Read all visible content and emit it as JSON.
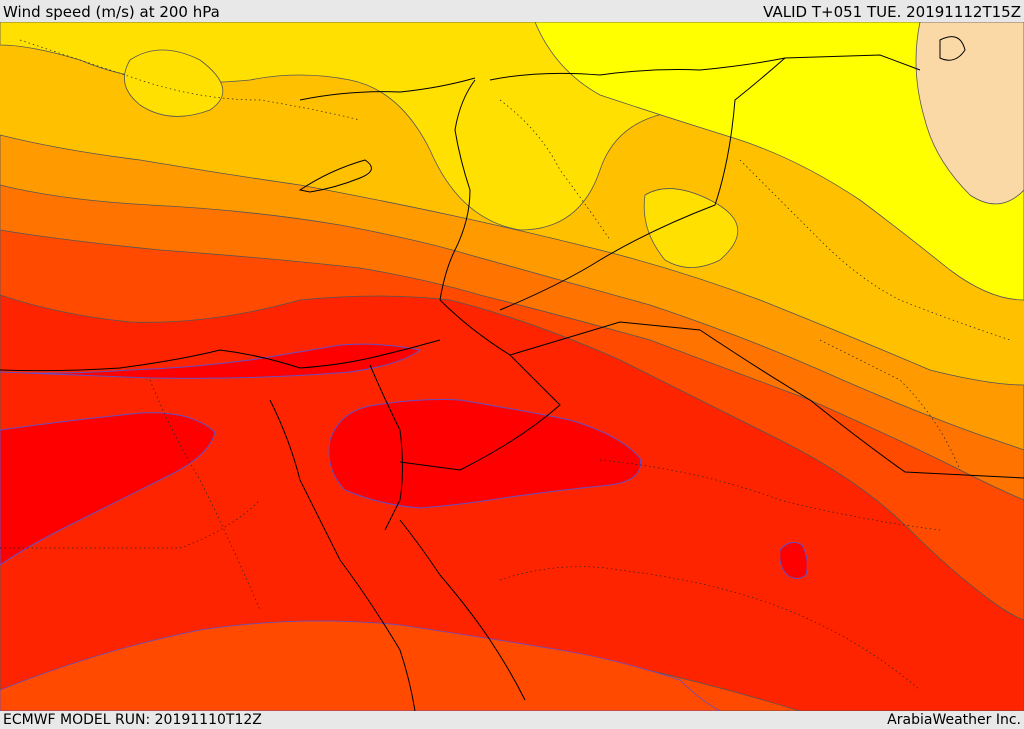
{
  "header": {
    "title": "Wind speed (m/s) at 200 hPa",
    "valid": "VALID T+051 TUE. 20191112T15Z"
  },
  "footer": {
    "model_run": "ECMWF MODEL RUN: 20191110T12Z",
    "credit": "ArabiaWeather Inc."
  },
  "map": {
    "field": "wind speed 200 hPa",
    "palette": {
      "lowest": "#fbd9a6",
      "level1": "#ffff00",
      "level2": "#ffe000",
      "level3": "#ffc000",
      "level4": "#ff9a00",
      "level5": "#ff7300",
      "level6": "#ff4a00",
      "level7": "#ff2400",
      "core": "#ff0000"
    },
    "contour_color": "#555555",
    "jet_core_color": "#6a4cc0"
  }
}
